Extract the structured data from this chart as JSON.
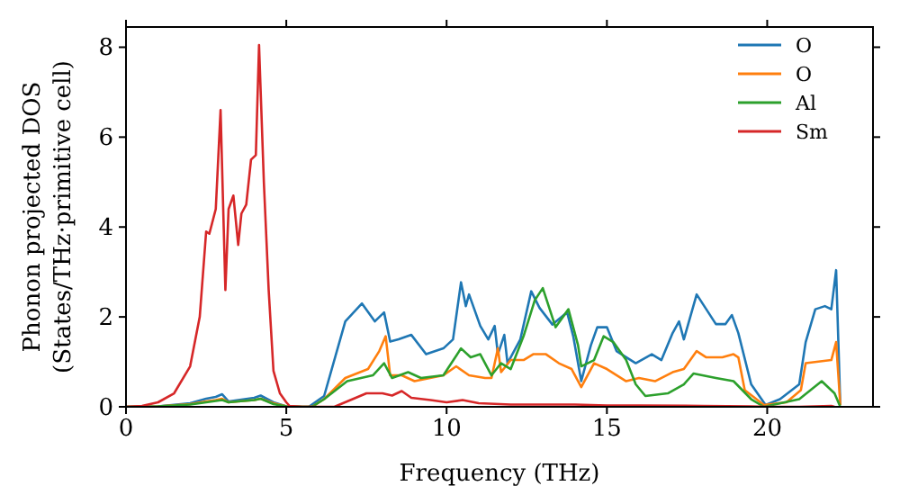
{
  "chart_data": {
    "type": "line",
    "xlabel": "Frequency (THz)",
    "ylabel": "Phonon projected DOS\n(States/THz·primitive cell)",
    "xlim": [
      0,
      23.3
    ],
    "ylim": [
      0,
      8.45
    ],
    "xticks": [
      0,
      5,
      10,
      15,
      20
    ],
    "yticks": [
      0,
      2,
      4,
      6,
      8
    ],
    "grid": false,
    "legend": "top right",
    "marker": "none",
    "line_style": "solid",
    "series": [
      {
        "name": "O",
        "color": "#1f77b4",
        "x": [
          0,
          1,
          2,
          2.5,
          2.8,
          3.0,
          3.2,
          3.5,
          4.0,
          4.2,
          4.6,
          5.0,
          5.5,
          5.7,
          6.18,
          6.84,
          7.36,
          7.76,
          8.05,
          8.24,
          8.5,
          8.9,
          9.36,
          9.9,
          10.2,
          10.45,
          10.6,
          10.7,
          11.05,
          11.3,
          11.5,
          11.6,
          11.8,
          11.9,
          12.3,
          12.64,
          12.9,
          13.3,
          13.76,
          13.95,
          14.2,
          14.5,
          14.7,
          15.0,
          15.3,
          15.9,
          16.4,
          16.7,
          17.05,
          17.25,
          17.4,
          17.8,
          18.1,
          18.4,
          18.7,
          18.9,
          19.1,
          19.5,
          19.95,
          20.4,
          21.0,
          21.2,
          21.5,
          21.8,
          22.0,
          22.15,
          22.28
        ],
        "values": [
          0,
          0.01,
          0.08,
          0.18,
          0.22,
          0.28,
          0.12,
          0.15,
          0.2,
          0.25,
          0.1,
          0.01,
          0,
          0,
          0.24,
          1.9,
          2.3,
          1.9,
          2.1,
          1.45,
          1.5,
          1.6,
          1.17,
          1.3,
          1.5,
          2.77,
          2.24,
          2.5,
          1.8,
          1.5,
          1.8,
          1.17,
          1.6,
          0.97,
          1.5,
          2.57,
          2.2,
          1.83,
          2.1,
          1.57,
          0.57,
          1.37,
          1.77,
          1.77,
          1.24,
          0.97,
          1.17,
          1.04,
          1.64,
          1.9,
          1.5,
          2.5,
          2.17,
          1.84,
          1.84,
          2.04,
          1.64,
          0.5,
          0.04,
          0.17,
          0.5,
          1.44,
          2.17,
          2.24,
          2.17,
          3.04,
          0.04
        ]
      },
      {
        "name": "O",
        "color": "#ff7f0e",
        "x": [
          0,
          1,
          2,
          2.5,
          2.8,
          3.0,
          3.2,
          3.5,
          4.0,
          4.2,
          4.6,
          5.0,
          5.5,
          5.8,
          6.18,
          6.84,
          7.55,
          7.9,
          8.1,
          8.24,
          8.6,
          9.0,
          9.9,
          10.3,
          10.7,
          11.2,
          11.4,
          11.6,
          11.7,
          12.0,
          12.4,
          12.7,
          13.1,
          13.5,
          13.9,
          14.2,
          14.6,
          15.0,
          15.6,
          16.0,
          16.5,
          17.05,
          17.4,
          17.8,
          18.1,
          18.6,
          18.95,
          19.1,
          19.3,
          19.9,
          20.6,
          21.05,
          21.2,
          22.0,
          22.15,
          22.28
        ],
        "values": [
          0,
          0.01,
          0.06,
          0.12,
          0.15,
          0.18,
          0.1,
          0.12,
          0.15,
          0.18,
          0.08,
          0.01,
          0,
          0,
          0.17,
          0.64,
          0.84,
          1.24,
          1.57,
          0.7,
          0.7,
          0.57,
          0.7,
          0.9,
          0.7,
          0.64,
          0.64,
          1.3,
          0.77,
          1.04,
          1.04,
          1.17,
          1.17,
          0.97,
          0.84,
          0.44,
          0.97,
          0.84,
          0.57,
          0.64,
          0.57,
          0.77,
          0.84,
          1.24,
          1.1,
          1.1,
          1.17,
          1.1,
          0.37,
          0.04,
          0.1,
          0.37,
          0.97,
          1.04,
          1.44,
          0.04
        ]
      },
      {
        "name": "Al",
        "color": "#2ca02c",
        "x": [
          0,
          1,
          2,
          2.5,
          2.8,
          3.0,
          3.2,
          3.5,
          4.0,
          4.2,
          4.6,
          5.0,
          5.5,
          5.8,
          6.18,
          6.9,
          7.7,
          8.05,
          8.3,
          8.8,
          9.2,
          9.9,
          10.45,
          10.75,
          11.05,
          11.4,
          11.7,
          12.0,
          12.4,
          12.75,
          13.0,
          13.4,
          13.8,
          14.1,
          14.2,
          14.6,
          14.9,
          15.2,
          15.6,
          15.9,
          16.2,
          16.9,
          17.4,
          17.7,
          18.4,
          18.95,
          19.5,
          19.9,
          21.0,
          21.7,
          22.1,
          22.28
        ],
        "values": [
          0,
          0.01,
          0.05,
          0.1,
          0.13,
          0.15,
          0.1,
          0.12,
          0.15,
          0.18,
          0.06,
          0.01,
          0,
          0,
          0.17,
          0.57,
          0.7,
          0.97,
          0.64,
          0.77,
          0.64,
          0.7,
          1.3,
          1.1,
          1.17,
          0.7,
          0.97,
          0.84,
          1.57,
          2.37,
          2.64,
          1.77,
          2.17,
          1.37,
          0.9,
          1.04,
          1.57,
          1.44,
          1.04,
          0.5,
          0.24,
          0.3,
          0.5,
          0.74,
          0.64,
          0.57,
          0.17,
          0,
          0.17,
          0.57,
          0.3,
          0
        ]
      },
      {
        "name": "Sm",
        "color": "#d62728",
        "x": [
          0,
          0.5,
          1,
          1.5,
          2,
          2.3,
          2.5,
          2.6,
          2.8,
          2.95,
          3.1,
          3.2,
          3.35,
          3.5,
          3.6,
          3.75,
          3.9,
          4.05,
          4.15,
          4.3,
          4.45,
          4.6,
          4.8,
          5.0,
          5.1,
          5.5,
          6.5,
          7,
          7.5,
          8.0,
          8.3,
          8.6,
          8.9,
          9.5,
          10,
          10.5,
          11,
          12,
          14,
          15,
          16,
          18,
          19.5,
          20,
          21,
          22,
          22.1
        ],
        "values": [
          0,
          0.02,
          0.1,
          0.3,
          0.9,
          2,
          3.9,
          3.85,
          4.4,
          6.6,
          2.6,
          4.4,
          4.7,
          3.6,
          4.3,
          4.5,
          5.5,
          5.6,
          8.05,
          5,
          2.6,
          0.8,
          0.3,
          0.1,
          0.02,
          0,
          0,
          0.15,
          0.3,
          0.3,
          0.25,
          0.35,
          0.2,
          0.15,
          0.1,
          0.15,
          0.08,
          0.05,
          0.05,
          0.03,
          0.03,
          0.02,
          0.01,
          0,
          0,
          0.02,
          0
        ]
      }
    ]
  }
}
